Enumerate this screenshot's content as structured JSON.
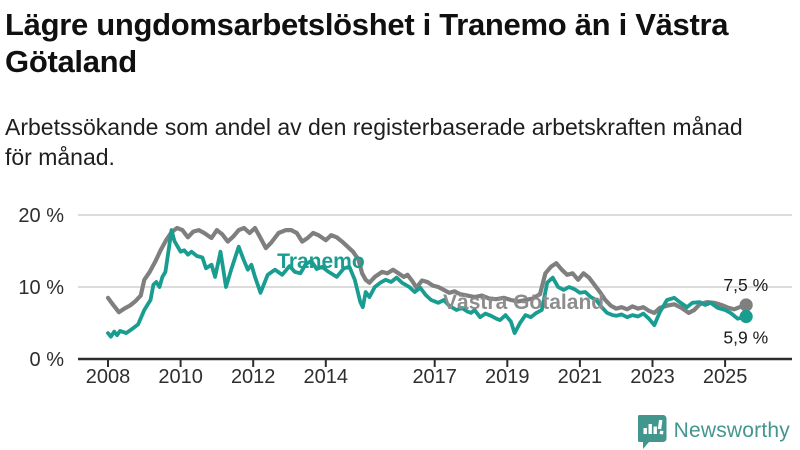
{
  "header": {
    "title": "Lägre ungdomsarbetslöshet i Tranemo än i Västra Götaland",
    "subtitle": "Arbetssökande som andel av den registerbaserade arbetskraften månad för månad."
  },
  "footer": {
    "brand": "Newsworthy",
    "logo_icon": "bar-chart-speech-bubble-icon"
  },
  "colors": {
    "tranemo": "#189d90",
    "vastra_gotaland": "#7f7f7f",
    "vastra_gotaland_label": "#8d8d8d",
    "grid": "#dcdcdc",
    "axis": "#2d2d2d",
    "tick_text": "#2e2e2e",
    "end_label_text": "#1a1a1a",
    "brand_teal": "#43968e"
  },
  "chart_data": {
    "type": "line",
    "title": "",
    "xlabel": "",
    "ylabel": "",
    "x_unit": "year (monthly data)",
    "y_unit": "percent",
    "xlim": [
      2007.6,
      2026.1
    ],
    "ylim": [
      0,
      21.5
    ],
    "grid": "horizontal-only",
    "legend_position": "inline-labels",
    "y_ticks": [
      {
        "value": 0,
        "label": "0 %"
      },
      {
        "value": 10,
        "label": "10 %"
      },
      {
        "value": 20,
        "label": "20 %"
      }
    ],
    "x_ticks": [
      {
        "value": 2008,
        "label": "2008"
      },
      {
        "value": 2010,
        "label": "2010"
      },
      {
        "value": 2012,
        "label": "2012"
      },
      {
        "value": 2014,
        "label": "2014"
      },
      {
        "value": 2017,
        "label": "2017"
      },
      {
        "value": 2019,
        "label": "2019"
      },
      {
        "value": 2021,
        "label": "2021"
      },
      {
        "value": 2023,
        "label": "2023"
      },
      {
        "value": 2025,
        "label": "2025"
      }
    ],
    "series": [
      {
        "name": "Västra Götaland",
        "color": "#7f7f7f",
        "label_color": "#8d8d8d",
        "label_anchor": [
          2017.23,
          7.9
        ],
        "end_label": "7,5 %",
        "end_value": 7.5,
        "end_label_side": "above",
        "points": [
          [
            2008.0,
            8.5
          ],
          [
            2008.1,
            7.8
          ],
          [
            2008.3,
            6.5
          ],
          [
            2008.45,
            7.0
          ],
          [
            2008.6,
            7.4
          ],
          [
            2008.75,
            8.0
          ],
          [
            2008.9,
            8.8
          ],
          [
            2009.0,
            11.0
          ],
          [
            2009.15,
            12.1
          ],
          [
            2009.3,
            13.5
          ],
          [
            2009.45,
            15.1
          ],
          [
            2009.6,
            16.5
          ],
          [
            2009.75,
            17.6
          ],
          [
            2009.9,
            18.2
          ],
          [
            2010.05,
            17.9
          ],
          [
            2010.2,
            16.9
          ],
          [
            2010.35,
            17.7
          ],
          [
            2010.5,
            17.9
          ],
          [
            2010.65,
            17.5
          ],
          [
            2010.85,
            16.8
          ],
          [
            2011.0,
            17.9
          ],
          [
            2011.15,
            17.3
          ],
          [
            2011.3,
            16.3
          ],
          [
            2011.45,
            17.0
          ],
          [
            2011.6,
            17.9
          ],
          [
            2011.75,
            18.2
          ],
          [
            2011.9,
            17.5
          ],
          [
            2012.05,
            18.2
          ],
          [
            2012.2,
            16.8
          ],
          [
            2012.35,
            15.4
          ],
          [
            2012.5,
            16.2
          ],
          [
            2012.7,
            17.5
          ],
          [
            2012.9,
            17.9
          ],
          [
            2013.05,
            17.9
          ],
          [
            2013.2,
            17.5
          ],
          [
            2013.35,
            16.3
          ],
          [
            2013.5,
            16.8
          ],
          [
            2013.65,
            17.5
          ],
          [
            2013.8,
            17.2
          ],
          [
            2014.0,
            16.5
          ],
          [
            2014.15,
            17.2
          ],
          [
            2014.3,
            16.9
          ],
          [
            2014.45,
            16.3
          ],
          [
            2014.6,
            15.6
          ],
          [
            2014.75,
            14.9
          ],
          [
            2014.9,
            13.8
          ],
          [
            2015.0,
            11.9
          ],
          [
            2015.1,
            11.0
          ],
          [
            2015.2,
            10.6
          ],
          [
            2015.35,
            11.4
          ],
          [
            2015.55,
            12.1
          ],
          [
            2015.7,
            11.9
          ],
          [
            2015.85,
            12.4
          ],
          [
            2016.0,
            11.9
          ],
          [
            2016.15,
            11.4
          ],
          [
            2016.25,
            11.7
          ],
          [
            2016.4,
            10.7
          ],
          [
            2016.5,
            9.9
          ],
          [
            2016.65,
            10.9
          ],
          [
            2016.8,
            10.7
          ],
          [
            2016.95,
            10.2
          ],
          [
            2017.1,
            10.0
          ],
          [
            2017.25,
            9.6
          ],
          [
            2017.4,
            9.2
          ],
          [
            2017.55,
            9.4
          ],
          [
            2017.7,
            9.0
          ],
          [
            2017.9,
            8.8
          ],
          [
            2018.1,
            8.6
          ],
          [
            2018.3,
            8.8
          ],
          [
            2018.5,
            8.4
          ],
          [
            2018.7,
            8.3
          ],
          [
            2018.9,
            8.5
          ],
          [
            2019.1,
            8.2
          ],
          [
            2019.3,
            8.0
          ],
          [
            2019.5,
            8.2
          ],
          [
            2019.7,
            8.4
          ],
          [
            2019.9,
            9.0
          ],
          [
            2020.05,
            11.9
          ],
          [
            2020.2,
            12.8
          ],
          [
            2020.35,
            13.3
          ],
          [
            2020.5,
            12.4
          ],
          [
            2020.65,
            11.7
          ],
          [
            2020.8,
            11.9
          ],
          [
            2020.95,
            11.0
          ],
          [
            2021.1,
            11.9
          ],
          [
            2021.25,
            11.3
          ],
          [
            2021.4,
            10.3
          ],
          [
            2021.55,
            9.3
          ],
          [
            2021.7,
            8.2
          ],
          [
            2021.85,
            7.4
          ],
          [
            2022.0,
            7.0
          ],
          [
            2022.15,
            7.2
          ],
          [
            2022.3,
            6.9
          ],
          [
            2022.45,
            7.3
          ],
          [
            2022.6,
            7.0
          ],
          [
            2022.75,
            7.2
          ],
          [
            2022.9,
            6.7
          ],
          [
            2023.05,
            6.4
          ],
          [
            2023.2,
            7.1
          ],
          [
            2023.4,
            7.4
          ],
          [
            2023.6,
            7.6
          ],
          [
            2023.8,
            7.1
          ],
          [
            2024.0,
            6.4
          ],
          [
            2024.15,
            6.8
          ],
          [
            2024.3,
            7.6
          ],
          [
            2024.5,
            7.9
          ],
          [
            2024.7,
            7.8
          ],
          [
            2024.9,
            7.5
          ],
          [
            2025.1,
            7.1
          ],
          [
            2025.25,
            6.9
          ],
          [
            2025.45,
            7.3
          ],
          [
            2025.58,
            7.5
          ]
        ]
      },
      {
        "name": "Tranemo",
        "color": "#189d90",
        "label_color": "#189d90",
        "label_anchor": [
          2012.66,
          13.6
        ],
        "end_label": "5,9 %",
        "end_value": 5.9,
        "end_label_side": "below",
        "points": [
          [
            2008.0,
            3.6
          ],
          [
            2008.08,
            3.1
          ],
          [
            2008.17,
            3.8
          ],
          [
            2008.25,
            3.3
          ],
          [
            2008.33,
            3.9
          ],
          [
            2008.5,
            3.6
          ],
          [
            2008.67,
            4.2
          ],
          [
            2008.83,
            4.8
          ],
          [
            2009.0,
            6.8
          ],
          [
            2009.17,
            8.2
          ],
          [
            2009.25,
            10.3
          ],
          [
            2009.33,
            10.7
          ],
          [
            2009.42,
            10.0
          ],
          [
            2009.5,
            11.4
          ],
          [
            2009.58,
            12.1
          ],
          [
            2009.67,
            15.1
          ],
          [
            2009.75,
            17.9
          ],
          [
            2009.83,
            16.4
          ],
          [
            2009.92,
            15.6
          ],
          [
            2010.0,
            14.9
          ],
          [
            2010.1,
            15.1
          ],
          [
            2010.2,
            14.5
          ],
          [
            2010.3,
            14.9
          ],
          [
            2010.45,
            14.3
          ],
          [
            2010.6,
            14.1
          ],
          [
            2010.7,
            12.6
          ],
          [
            2010.85,
            13.1
          ],
          [
            2010.95,
            11.4
          ],
          [
            2011.1,
            14.9
          ],
          [
            2011.25,
            10.0
          ],
          [
            2011.4,
            12.5
          ],
          [
            2011.6,
            15.6
          ],
          [
            2011.72,
            14.0
          ],
          [
            2011.85,
            12.4
          ],
          [
            2011.95,
            13.1
          ],
          [
            2012.05,
            11.4
          ],
          [
            2012.2,
            9.2
          ],
          [
            2012.4,
            11.7
          ],
          [
            2012.6,
            12.4
          ],
          [
            2012.8,
            11.7
          ],
          [
            2013.0,
            12.9
          ],
          [
            2013.15,
            12.1
          ],
          [
            2013.3,
            11.9
          ],
          [
            2013.45,
            13.2
          ],
          [
            2013.6,
            13.6
          ],
          [
            2013.75,
            12.5
          ],
          [
            2013.9,
            12.8
          ],
          [
            2014.05,
            12.2
          ],
          [
            2014.3,
            11.4
          ],
          [
            2014.5,
            12.6
          ],
          [
            2014.65,
            12.8
          ],
          [
            2014.8,
            11.0
          ],
          [
            2014.95,
            7.9
          ],
          [
            2015.02,
            7.2
          ],
          [
            2015.1,
            9.3
          ],
          [
            2015.2,
            8.6
          ],
          [
            2015.35,
            10.0
          ],
          [
            2015.5,
            10.6
          ],
          [
            2015.65,
            11.0
          ],
          [
            2015.8,
            10.7
          ],
          [
            2015.95,
            11.3
          ],
          [
            2016.1,
            10.6
          ],
          [
            2016.3,
            10.0
          ],
          [
            2016.45,
            9.3
          ],
          [
            2016.6,
            9.9
          ],
          [
            2016.75,
            8.9
          ],
          [
            2016.9,
            8.2
          ],
          [
            2017.1,
            7.8
          ],
          [
            2017.25,
            8.2
          ],
          [
            2017.4,
            7.4
          ],
          [
            2017.6,
            6.8
          ],
          [
            2017.75,
            7.1
          ],
          [
            2017.9,
            6.6
          ],
          [
            2018.0,
            6.4
          ],
          [
            2018.1,
            6.8
          ],
          [
            2018.25,
            5.8
          ],
          [
            2018.4,
            6.3
          ],
          [
            2018.55,
            6.0
          ],
          [
            2018.7,
            5.6
          ],
          [
            2018.8,
            5.4
          ],
          [
            2018.95,
            6.1
          ],
          [
            2019.1,
            5.2
          ],
          [
            2019.2,
            3.6
          ],
          [
            2019.35,
            5.0
          ],
          [
            2019.5,
            6.1
          ],
          [
            2019.65,
            5.8
          ],
          [
            2019.8,
            6.4
          ],
          [
            2019.95,
            6.8
          ],
          [
            2020.1,
            10.6
          ],
          [
            2020.25,
            11.3
          ],
          [
            2020.4,
            10.0
          ],
          [
            2020.55,
            9.6
          ],
          [
            2020.7,
            10.0
          ],
          [
            2020.85,
            9.7
          ],
          [
            2021.0,
            9.2
          ],
          [
            2021.15,
            9.3
          ],
          [
            2021.3,
            8.6
          ],
          [
            2021.45,
            8.2
          ],
          [
            2021.6,
            7.2
          ],
          [
            2021.75,
            6.4
          ],
          [
            2021.9,
            6.1
          ],
          [
            2022.0,
            6.0
          ],
          [
            2022.15,
            6.2
          ],
          [
            2022.3,
            5.8
          ],
          [
            2022.45,
            6.1
          ],
          [
            2022.6,
            5.9
          ],
          [
            2022.75,
            6.3
          ],
          [
            2022.9,
            5.6
          ],
          [
            2023.05,
            4.7
          ],
          [
            2023.2,
            6.5
          ],
          [
            2023.4,
            8.2
          ],
          [
            2023.6,
            8.5
          ],
          [
            2023.75,
            7.9
          ],
          [
            2023.95,
            7.2
          ],
          [
            2024.1,
            7.8
          ],
          [
            2024.3,
            7.9
          ],
          [
            2024.45,
            7.5
          ],
          [
            2024.6,
            7.8
          ],
          [
            2024.8,
            7.1
          ],
          [
            2025.0,
            6.8
          ],
          [
            2025.15,
            6.4
          ],
          [
            2025.35,
            5.6
          ],
          [
            2025.5,
            5.8
          ],
          [
            2025.58,
            5.9
          ]
        ]
      }
    ]
  }
}
